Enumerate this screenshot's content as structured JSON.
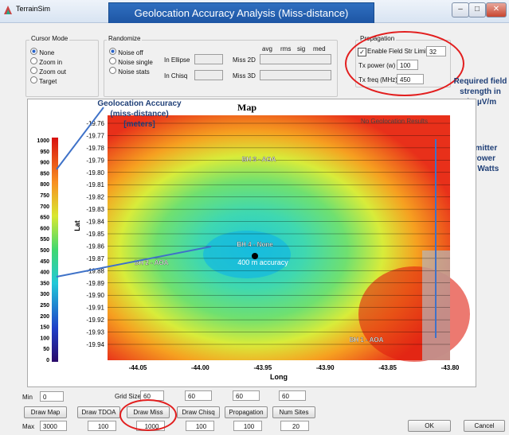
{
  "window": {
    "app_title": "TerrainSim",
    "banner": "Geolocation Accuracy Analysis (Miss-distance)",
    "buttons": [
      "–",
      "□",
      "✕"
    ]
  },
  "cursor_mode": {
    "title": "Cursor Mode",
    "options": [
      {
        "label": "None",
        "selected": true
      },
      {
        "label": "Zoom in",
        "selected": false
      },
      {
        "label": "Zoom out",
        "selected": false
      },
      {
        "label": "Target",
        "selected": false
      }
    ]
  },
  "randomize": {
    "title": "Randomize",
    "options": [
      {
        "label": "Noise off",
        "selected": true
      },
      {
        "label": "Noise single",
        "selected": false
      },
      {
        "label": "Noise stats",
        "selected": false
      }
    ],
    "in_ellipse": "In Ellipse",
    "in_chisq": "In Chisq",
    "miss2d": "Miss 2D",
    "miss3d": "Miss 3D",
    "stat_headers": [
      "avg",
      "rms",
      "sig",
      "med"
    ]
  },
  "propagation": {
    "title": "Propagation",
    "enable_label": "Enable",
    "enable_checked": true,
    "field_str_label": "Field Str Limit",
    "field_str_value": "32",
    "tx_power_label": "Tx power (w)",
    "tx_power_value": "100",
    "tx_freq_label": "Tx freq (MHz)",
    "tx_freq_value": "450"
  },
  "callouts": {
    "field_strength": [
      "Required field",
      "strength in",
      "dB µV/m"
    ],
    "emitter_power": [
      "Emitter",
      "Power",
      "in Watts"
    ],
    "geo_accuracy": [
      "Geolocation Accuracy",
      "(miss-distance)",
      "[meters]"
    ]
  },
  "map": {
    "title": "Map",
    "no_results": "No Geolocation Results",
    "accuracy_note": "400 m accuracy",
    "sites": [
      {
        "name": "BH 3 - AOA"
      },
      {
        "name": "BH 4 - None"
      },
      {
        "name": "BH 2 - AOA"
      },
      {
        "name": "BH 1 - AOA"
      }
    ],
    "xlabel": "Long",
    "ylabel": "Lat",
    "xticks": [
      "-44.05",
      "-44.00",
      "-43.95",
      "-43.90",
      "-43.85",
      "-43.80"
    ],
    "yticks": [
      "-19.76",
      "-19.77",
      "-19.78",
      "-19.79",
      "-19.80",
      "-19.81",
      "-19.82",
      "-19.83",
      "-19.84",
      "-19.85",
      "-19.86",
      "-19.87",
      "-19.88",
      "-19.89",
      "-19.90",
      "-19.91",
      "-19.92",
      "-19.93",
      "-19.94"
    ],
    "colorbar_ticks": [
      "1000",
      "950",
      "900",
      "850",
      "800",
      "750",
      "700",
      "650",
      "600",
      "550",
      "500",
      "450",
      "400",
      "350",
      "300",
      "250",
      "200",
      "150",
      "100",
      "50",
      "0"
    ],
    "colors": {
      "low": "#3a1a8a",
      "mid": "#35d0c8",
      "high": "#e02010"
    }
  },
  "bottom": {
    "min_label": "Min",
    "min_value": "0",
    "max_label": "Max",
    "max_value": "3000",
    "grid_sizes_label": "Grid Sizes",
    "grid_values": [
      "60",
      "60",
      "60",
      "60"
    ],
    "buttons": [
      "Draw Map",
      "Draw TDOA",
      "Draw Miss",
      "Draw Chisq",
      "Propagation",
      "Num Sites"
    ],
    "under_values": [
      "100",
      "1000",
      "100",
      "100",
      "20"
    ],
    "ok": "OK",
    "cancel": "Cancel"
  }
}
